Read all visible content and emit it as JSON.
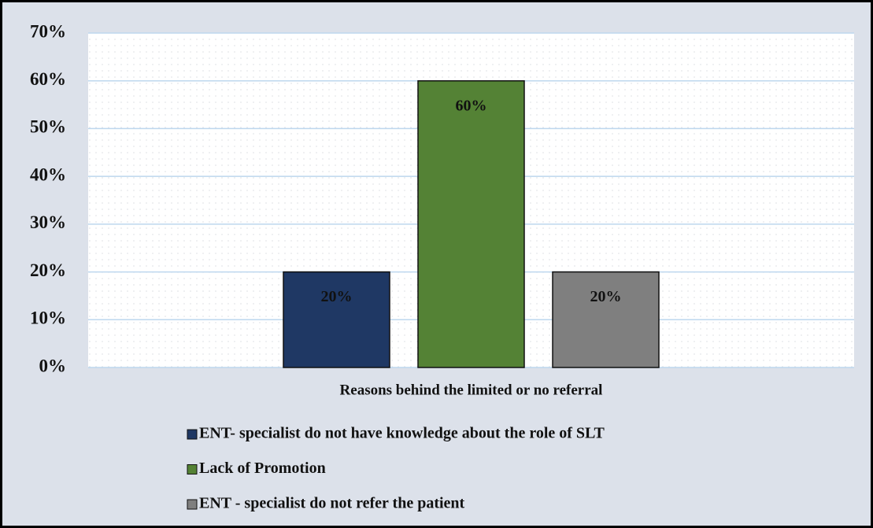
{
  "chart_data": {
    "type": "bar",
    "categories": [
      "Reasons behind the limited or no referral"
    ],
    "series": [
      {
        "name": "ENT- specialist do not have knowledge about the role of SLT",
        "color": "#1f3864",
        "values": [
          20
        ],
        "value_labels": [
          "20%"
        ]
      },
      {
        "name": "Lack of Promotion",
        "color": "#548235",
        "values": [
          60
        ],
        "value_labels": [
          "60%"
        ]
      },
      {
        "name": "ENT - specialist do not refer the patient",
        "color": "#7f7f7f",
        "values": [
          20
        ],
        "value_labels": [
          "20%"
        ]
      }
    ],
    "ylim": [
      0,
      70
    ],
    "yticks": [
      {
        "value": 0,
        "label": "0%"
      },
      {
        "value": 10,
        "label": "10%"
      },
      {
        "value": 20,
        "label": "20%"
      },
      {
        "value": 30,
        "label": "30%"
      },
      {
        "value": 40,
        "label": "40%"
      },
      {
        "value": 50,
        "label": "50%"
      },
      {
        "value": 60,
        "label": "60%"
      },
      {
        "value": 70,
        "label": "70%"
      }
    ],
    "grid": true,
    "legend": "bottom"
  }
}
